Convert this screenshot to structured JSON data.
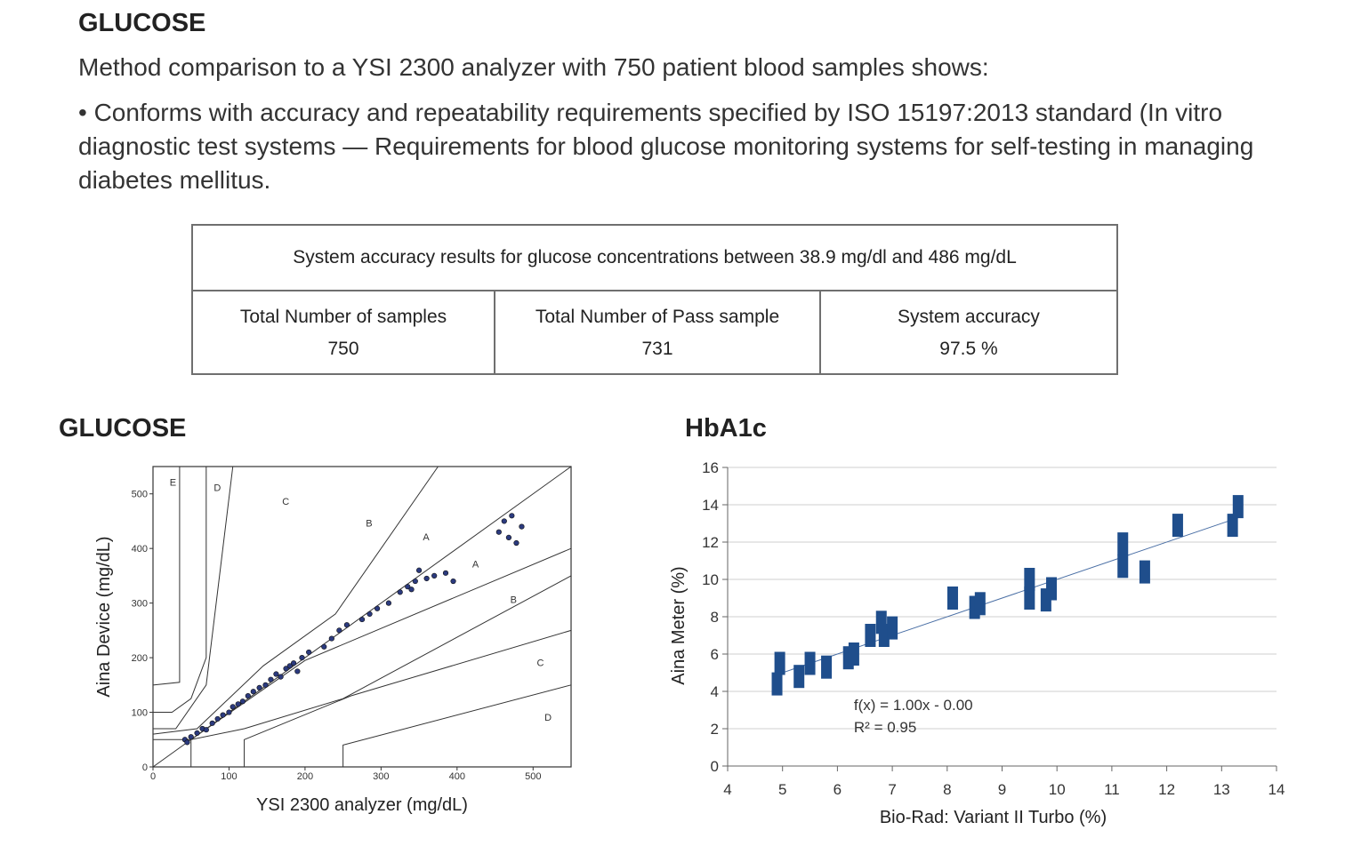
{
  "header": {
    "title": "GLUCOSE",
    "intro": "Method comparison to a YSI 2300 analyzer with 750 patient blood samples shows:",
    "bullet": "• Conforms with accuracy and repeatability requirements specified by ISO 15197:2013 standard (In vitro diagnostic test systems — Requirements for blood glucose monitoring systems for self-testing in managing diabetes mellitus."
  },
  "accuracy_table": {
    "caption": "System accuracy results for glucose concentrations between 38.9 mg/dl and 486 mg/dL",
    "columns": [
      {
        "label": "Total Number of samples",
        "value": "750"
      },
      {
        "label": "Total Number of Pass sample",
        "value": "731"
      },
      {
        "label": "System accuracy",
        "value": "97.5 %"
      }
    ]
  },
  "glucose_section": {
    "title": "GLUCOSE"
  },
  "hba1c_section": {
    "title": "HbA1c"
  },
  "chart_data": [
    {
      "type": "scatter",
      "title": "",
      "xlabel": "YSI 2300 analyzer (mg/dL)",
      "ylabel": "Aina Device (mg/dL)",
      "xlim": [
        0,
        550
      ],
      "ylim": [
        0,
        550
      ],
      "xticks": [
        0,
        100,
        200,
        300,
        400,
        500
      ],
      "yticks": [
        0,
        100,
        200,
        300,
        400,
        500
      ],
      "grid": false,
      "zone_labels": [
        "E",
        "D",
        "C",
        "B",
        "A",
        "A",
        "B",
        "C",
        "D"
      ],
      "x": [
        42,
        45,
        50,
        58,
        65,
        70,
        78,
        85,
        92,
        100,
        105,
        112,
        118,
        125,
        132,
        140,
        148,
        155,
        162,
        168,
        175,
        180,
        185,
        190,
        196,
        205,
        225,
        235,
        245,
        255,
        275,
        285,
        295,
        310,
        325,
        335,
        340,
        345,
        350,
        360,
        370,
        385,
        395,
        455,
        462,
        468,
        472,
        478,
        485
      ],
      "y": [
        50,
        45,
        55,
        62,
        70,
        68,
        80,
        88,
        95,
        100,
        110,
        115,
        120,
        130,
        138,
        145,
        150,
        160,
        170,
        165,
        180,
        185,
        190,
        175,
        200,
        210,
        220,
        235,
        250,
        260,
        270,
        280,
        290,
        300,
        320,
        330,
        325,
        340,
        360,
        345,
        350,
        355,
        340,
        430,
        450,
        420,
        460,
        410,
        440
      ]
    },
    {
      "type": "scatter",
      "title": "",
      "xlabel": "Bio-Rad: Variant II Turbo (%)",
      "ylabel": "Aina Meter (%)",
      "xlim": [
        4,
        14
      ],
      "ylim": [
        0,
        16
      ],
      "xticks": [
        4,
        5,
        6,
        7,
        8,
        9,
        10,
        11,
        12,
        13,
        14
      ],
      "yticks": [
        0,
        2,
        4,
        6,
        8,
        10,
        12,
        14,
        16
      ],
      "grid": true,
      "series": [
        {
          "x": [
            4.9,
            4.95,
            5.3,
            5.5,
            5.8,
            6.2,
            6.3,
            6.6,
            6.8,
            6.85,
            7.0,
            8.1,
            8.5,
            8.6,
            9.5,
            9.5,
            9.8,
            9.9,
            11.2,
            11.2,
            11.6,
            12.2,
            13.2,
            13.3
          ],
          "y": [
            4.4,
            5.5,
            4.8,
            5.5,
            5.3,
            5.8,
            6.0,
            7.0,
            7.7,
            7.0,
            7.4,
            9.0,
            8.5,
            8.7,
            9.0,
            10.0,
            8.9,
            9.5,
            11.9,
            10.7,
            10.4,
            12.9,
            12.9,
            13.9
          ]
        }
      ],
      "annotations": [
        "f(x) = 1.00x - 0.00",
        "R² = 0.95"
      ],
      "trendline": {
        "slope": 1.0,
        "intercept": 0.0
      },
      "accent_color": "#1f4e8c"
    }
  ]
}
